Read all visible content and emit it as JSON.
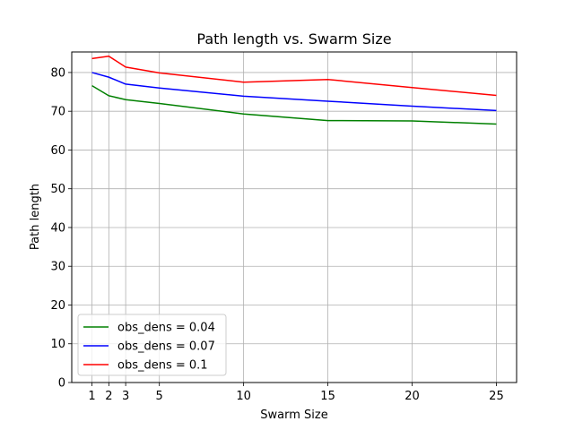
{
  "chart_data": {
    "type": "line",
    "title": "Path length vs. Swarm Size",
    "xlabel": "Swarm Size",
    "ylabel": "Path length",
    "x": [
      1,
      2,
      3,
      5,
      10,
      15,
      20,
      25
    ],
    "xticks": [
      1,
      2,
      3,
      5,
      10,
      15,
      20,
      25
    ],
    "yticks": [
      0,
      10,
      20,
      30,
      40,
      50,
      60,
      70,
      80
    ],
    "xlim": [
      -0.2,
      26.2
    ],
    "ylim": [
      0,
      85.3
    ],
    "grid": true,
    "legend_position": "lower-left",
    "series": [
      {
        "name": "obs_dens = 0.04",
        "color": "#008000",
        "values": [
          76.6,
          74.0,
          73.0,
          72.0,
          69.3,
          67.6,
          67.5,
          66.7
        ]
      },
      {
        "name": "obs_dens = 0.07",
        "color": "#0000ff",
        "values": [
          80.0,
          78.8,
          77.0,
          76.0,
          73.9,
          72.6,
          71.3,
          70.2
        ]
      },
      {
        "name": "obs_dens = 0.1",
        "color": "#ff0000",
        "values": [
          83.6,
          84.2,
          81.4,
          79.9,
          77.5,
          78.2,
          76.1,
          74.1
        ]
      }
    ]
  }
}
